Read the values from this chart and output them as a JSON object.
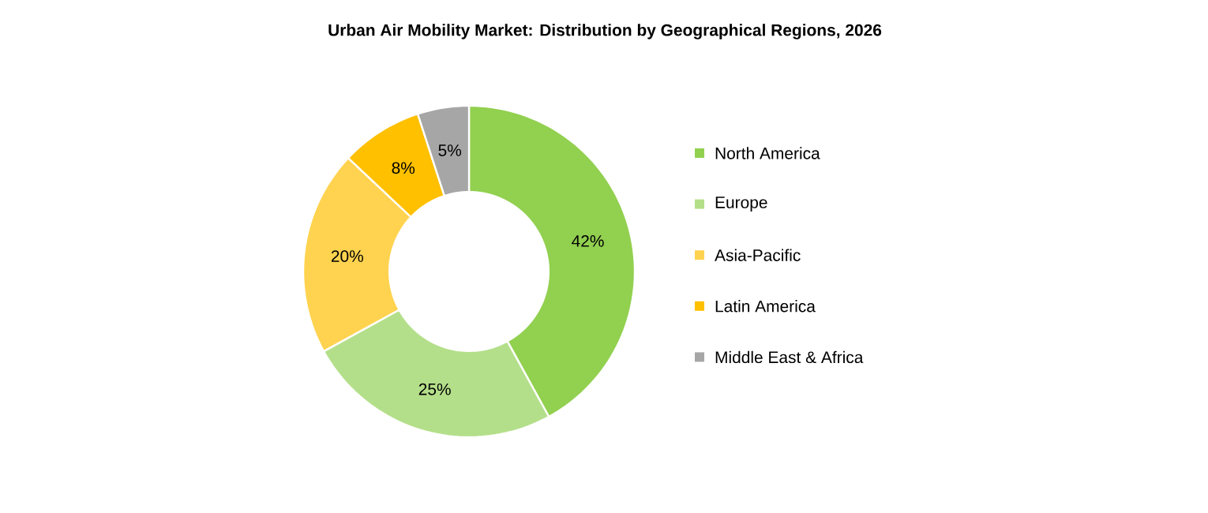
{
  "chart_data": {
    "type": "donut",
    "title": "Urban Air Mobility Market: Distribution by Geographical Regions, 2026",
    "categories": [
      "North America",
      "Europe",
      "Asia-Pacific",
      "Latin America",
      "Middle East & Africa"
    ],
    "values": [
      42,
      25,
      20,
      8,
      5
    ],
    "value_labels": [
      "42%",
      "25%",
      "20%",
      "8%",
      "5%"
    ],
    "colors": [
      "#92d050",
      "#b4df8a",
      "#ffd34f",
      "#ffc000",
      "#a6a6a6"
    ],
    "legend": "right"
  }
}
